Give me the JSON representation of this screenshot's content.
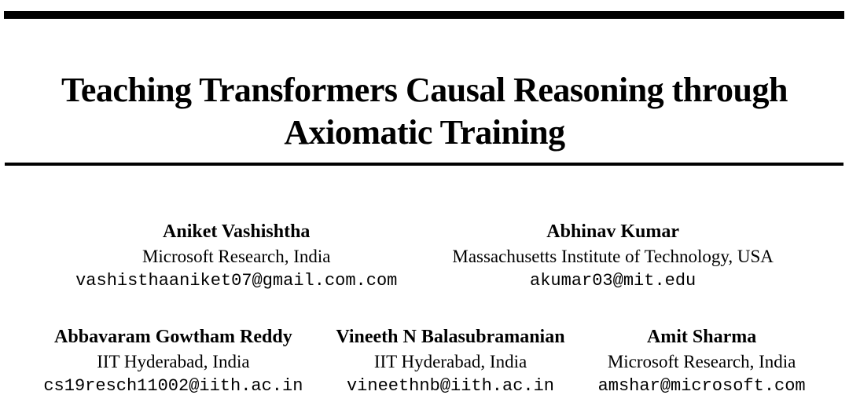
{
  "paper": {
    "title_line1": "Teaching Transformers Causal Reasoning through",
    "title_line2": "Axiomatic Training",
    "authors_row1": [
      {
        "name": "Aniket Vashishtha",
        "affiliation": "Microsoft Research, India",
        "email": "vashisthaaniket07@gmail.com.com"
      },
      {
        "name": "Abhinav Kumar",
        "affiliation": "Massachusetts Institute of Technology, USA",
        "email": "akumar03@mit.edu"
      }
    ],
    "authors_row2": [
      {
        "name": "Abbavaram Gowtham Reddy",
        "affiliation": "IIT Hyderabad, India",
        "email": "cs19resch11002@iith.ac.in"
      },
      {
        "name": "Vineeth N Balasubramanian",
        "affiliation": "IIT Hyderabad, India",
        "email": "vineethnb@iith.ac.in"
      },
      {
        "name": "Amit Sharma",
        "affiliation": "Microsoft Research, India",
        "email": "amshar@microsoft.com"
      }
    ]
  },
  "colors": {
    "text": "#000000",
    "background": "#ffffff",
    "rule": "#000000"
  }
}
